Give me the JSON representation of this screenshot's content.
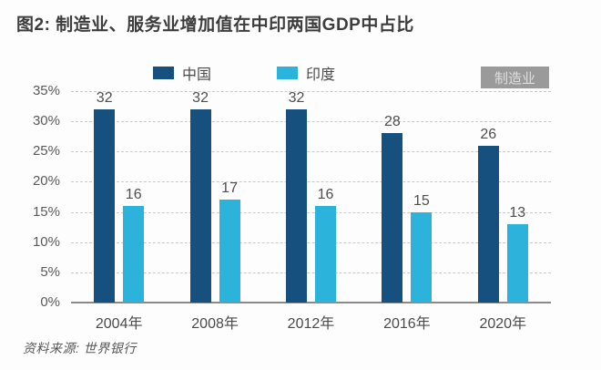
{
  "title": "图2: 制造业、服务业增加值在中印两国GDP中占比",
  "badge": {
    "label": "制造业",
    "bg_color": "#9a9a9a",
    "text_color": "#dedede"
  },
  "source": "资料来源: 世界银行",
  "colors": {
    "china_bar": "#15507e",
    "india_bar": "#2bb3db",
    "axis": "#8a8a8a",
    "gridline": "#c9c9c9"
  },
  "chart_data": {
    "type": "bar",
    "title": "图2: 制造业、服务业增加值在中印两国GDP中占比",
    "annotation": "制造业",
    "categories": [
      "2004年",
      "2008年",
      "2012年",
      "2016年",
      "2020年"
    ],
    "series": [
      {
        "name": "中国",
        "color": "#15507e",
        "values": [
          32,
          32,
          32,
          28,
          26
        ]
      },
      {
        "name": "印度",
        "color": "#2bb3db",
        "values": [
          16,
          17,
          16,
          15,
          13
        ]
      }
    ],
    "xlabel": "",
    "ylabel": "",
    "ylim": [
      0,
      35
    ],
    "ytick_step": 5,
    "ytick_suffix": "%",
    "grid": "horizontal-dashed",
    "legend_position": "top-center",
    "source": "资料来源: 世界银行"
  }
}
